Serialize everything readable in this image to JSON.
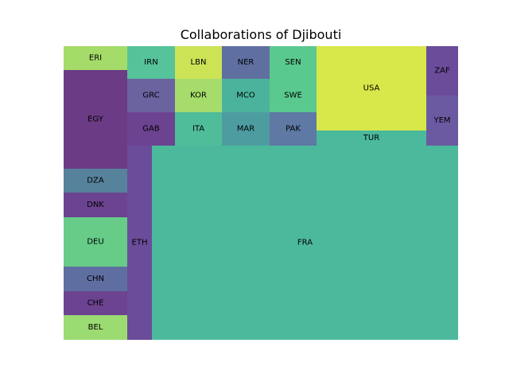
{
  "chart_data": {
    "type": "treemap",
    "title": "Collaborations of Djibouti",
    "cells": [
      {
        "label": "ERI",
        "value": 30,
        "color": "#a5dc69"
      },
      {
        "label": "EGY",
        "value": 123,
        "color": "#6b3b85"
      },
      {
        "label": "DZA",
        "value": 30,
        "color": "#56829c"
      },
      {
        "label": "DNK",
        "value": 31,
        "color": "#6b4391"
      },
      {
        "label": "DEU",
        "value": 62,
        "color": "#66cc88"
      },
      {
        "label": "CHN",
        "value": 31,
        "color": "#5f6ea0"
      },
      {
        "label": "CHE",
        "value": 30,
        "color": "#6b4391"
      },
      {
        "label": "BEL",
        "value": 31,
        "color": "#9bdb72"
      },
      {
        "label": "ETH",
        "value": 30,
        "color": "#6b4c9a"
      },
      {
        "label": "IRN",
        "value": 25,
        "color": "#56c39a"
      },
      {
        "label": "GRC",
        "value": 25,
        "color": "#6b63a0"
      },
      {
        "label": "GAB",
        "value": 25,
        "color": "#6b4391"
      },
      {
        "label": "LBN",
        "value": 25,
        "color": "#cce356"
      },
      {
        "label": "KOR",
        "value": 25,
        "color": "#a6dc6c"
      },
      {
        "label": "ITA",
        "value": 25,
        "color": "#4fbc9a"
      },
      {
        "label": "NER",
        "value": 25,
        "color": "#5f6fa0"
      },
      {
        "label": "MCO",
        "value": 25,
        "color": "#4bb39c"
      },
      {
        "label": "MAR",
        "value": 25,
        "color": "#4d9da0"
      },
      {
        "label": "SEN",
        "value": 25,
        "color": "#5ac98f"
      },
      {
        "label": "SWE",
        "value": 25,
        "color": "#5ac98f"
      },
      {
        "label": "PAK",
        "value": 25,
        "color": "#5e79a3"
      },
      {
        "label": "USA",
        "value": 106,
        "color": "#d8e74a"
      },
      {
        "label": "TUR",
        "value": 17,
        "color": "#4bb99b"
      },
      {
        "label": "ZAF",
        "value": 25,
        "color": "#6b4c9a"
      },
      {
        "label": "YEM",
        "value": 25,
        "color": "#6b5aa2"
      },
      {
        "label": "FRA",
        "value": 942,
        "color": "#4cb99c"
      }
    ]
  }
}
